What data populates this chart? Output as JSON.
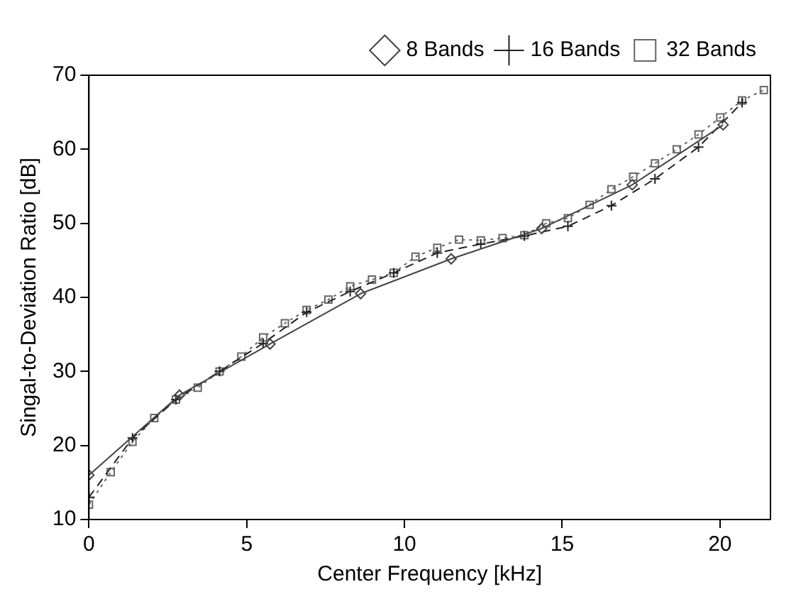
{
  "chart_data": {
    "type": "line",
    "xlabel": "Center Frequency [kHz]",
    "ylabel": "Singal-to-Deviation Ratio [dB]",
    "xlim": [
      0,
      21.6
    ],
    "ylim": [
      10,
      70
    ],
    "xticks": [
      0,
      5,
      10,
      15,
      20
    ],
    "yticks": [
      10,
      20,
      30,
      40,
      50,
      60,
      70
    ],
    "grid": false,
    "legend": "top right",
    "series": [
      {
        "name": "8 Bands",
        "color": "#444444",
        "marker": "diamond",
        "line_style": "solid",
        "x": [
          0,
          2.87,
          5.74,
          8.61,
          11.48,
          14.35,
          17.22,
          20.1
        ],
        "values": [
          16,
          26.8,
          33.7,
          40.5,
          45.2,
          49.3,
          55.2,
          63.3
        ]
      },
      {
        "name": "16 Bands",
        "color": "#222222",
        "marker": "cross",
        "line_style": "dashed",
        "x": [
          0,
          1.38,
          2.76,
          4.14,
          5.52,
          6.9,
          8.28,
          9.66,
          11.04,
          12.42,
          13.8,
          15.18,
          16.56,
          17.94,
          19.32,
          20.7
        ],
        "values": [
          13,
          21,
          26.2,
          30,
          33.8,
          38,
          40.8,
          43.3,
          46,
          47.2,
          48.3,
          49.6,
          52.4,
          56,
          60.3,
          66.3
        ]
      },
      {
        "name": "32 Bands",
        "color": "#666666",
        "marker": "square",
        "line_style": "dotted",
        "x": [
          0,
          0.69,
          1.38,
          2.07,
          2.76,
          3.45,
          4.14,
          4.83,
          5.52,
          6.21,
          6.9,
          7.59,
          8.28,
          8.97,
          9.66,
          10.35,
          11.04,
          11.73,
          12.42,
          13.11,
          13.8,
          14.49,
          15.18,
          15.87,
          16.56,
          17.25,
          17.94,
          18.63,
          19.32,
          20.01,
          20.7,
          21.39
        ],
        "values": [
          12,
          16.4,
          20.5,
          23.7,
          26.2,
          27.8,
          30,
          32,
          34.6,
          36.5,
          38.3,
          39.7,
          41.5,
          42.4,
          43.3,
          45.5,
          46.7,
          47.8,
          47.7,
          48,
          48.4,
          50,
          50.7,
          52.5,
          54.6,
          56.3,
          58.1,
          60,
          62,
          64.3,
          66.6,
          68
        ]
      }
    ]
  }
}
